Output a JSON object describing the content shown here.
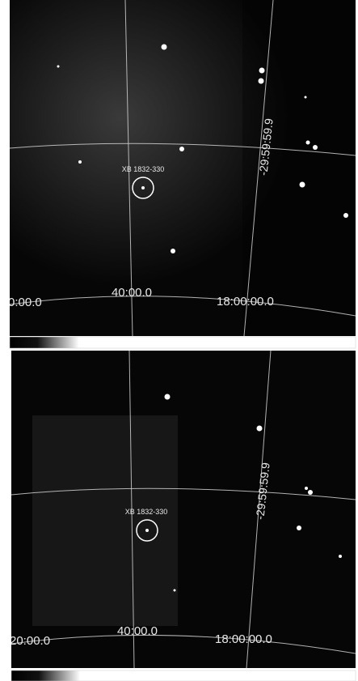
{
  "panels": [
    {
      "source_label": "XB 1832-330",
      "dec_label": "-29:59:59.9",
      "ra_labels": [
        "0:00.0",
        "40:00.0",
        "18:00:00.0"
      ]
    },
    {
      "source_label": "XB 1832-330",
      "dec_label": "-29:59:59.9",
      "ra_labels": [
        "20:00.0",
        "40:00.0",
        "18:00:00.0"
      ]
    }
  ]
}
